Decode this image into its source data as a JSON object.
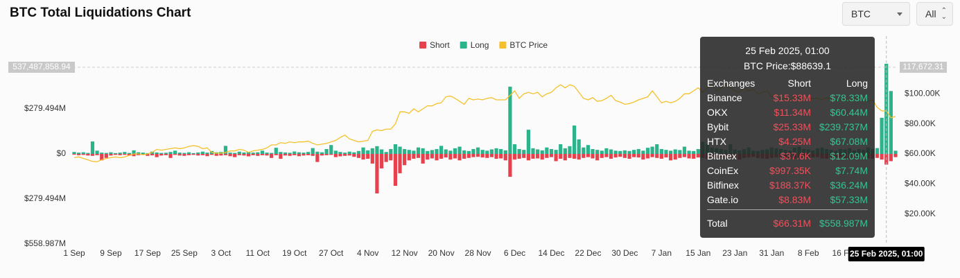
{
  "controls": {
    "symbol": "BTC",
    "range": "All"
  },
  "chart_data": {
    "type": "bar",
    "title": "BTC Total Liquidations Chart",
    "categories": [
      "1 Sep",
      null,
      null,
      null,
      null,
      null,
      null,
      null,
      "9 Sep",
      null,
      null,
      null,
      null,
      null,
      null,
      null,
      "17 Sep",
      null,
      null,
      null,
      null,
      null,
      null,
      null,
      "25 Sep",
      null,
      null,
      null,
      null,
      null,
      null,
      null,
      "3 Oct",
      null,
      null,
      null,
      null,
      null,
      null,
      null,
      "11 Oct",
      null,
      null,
      null,
      null,
      null,
      null,
      null,
      "19 Oct",
      null,
      null,
      null,
      null,
      null,
      null,
      null,
      "27 Oct",
      null,
      null,
      null,
      null,
      null,
      null,
      null,
      "4 Nov",
      null,
      null,
      null,
      null,
      null,
      null,
      null,
      "12 Nov",
      null,
      null,
      null,
      null,
      null,
      null,
      null,
      "20 Nov",
      null,
      null,
      null,
      null,
      null,
      null,
      null,
      "28 Nov",
      null,
      null,
      null,
      null,
      null,
      null,
      null,
      "6 Dec",
      null,
      null,
      null,
      null,
      null,
      null,
      null,
      "14 Dec",
      null,
      null,
      null,
      null,
      null,
      null,
      null,
      "22 Dec",
      null,
      null,
      null,
      null,
      null,
      null,
      null,
      "30 Dec",
      null,
      null,
      null,
      null,
      null,
      null,
      null,
      "7 Jan",
      null,
      null,
      null,
      null,
      null,
      null,
      null,
      "15 Jan",
      null,
      null,
      null,
      null,
      null,
      null,
      null,
      "23 Jan",
      null,
      null,
      null,
      null,
      null,
      null,
      null,
      "31 Jan",
      null,
      null,
      null,
      null,
      null,
      null,
      null,
      "8 Feb",
      null,
      null,
      null,
      null,
      null,
      null,
      null,
      "16 Feb",
      null,
      null,
      null,
      null,
      null,
      null,
      null,
      null,
      null,
      null,
      null
    ],
    "series": [
      {
        "name": "Short",
        "color": "#e8414e",
        "axis": "y",
        "values": [
          -5,
          -8,
          -6,
          -10,
          -12,
          -8,
          -40,
          -25,
          -10,
          -6,
          -8,
          -6,
          -10,
          -14,
          -8,
          -5,
          -12,
          -9,
          -20,
          -10,
          -8,
          -25,
          -6,
          -10,
          -12,
          -8,
          -6,
          -10,
          -8,
          -14,
          -6,
          -12,
          -10,
          -8,
          -14,
          -20,
          -8,
          -10,
          -15,
          -8,
          -12,
          -8,
          -10,
          -25,
          -8,
          -30,
          -10,
          -12,
          -8,
          -14,
          -10,
          -8,
          -12,
          -50,
          -10,
          -8,
          -6,
          -20,
          -15,
          -12,
          -10,
          -18,
          -25,
          -35,
          -30,
          -60,
          -245,
          -90,
          -50,
          -40,
          -198,
          -120,
          -70,
          -40,
          -30,
          -25,
          -60,
          -35,
          -28,
          -40,
          -30,
          -22,
          -35,
          -28,
          -40,
          -30,
          -25,
          -20,
          -18,
          -22,
          -25,
          -20,
          -30,
          -28,
          -40,
          -142,
          -35,
          -30,
          -25,
          -40,
          -30,
          -28,
          -35,
          -25,
          -20,
          -45,
          -30,
          -40,
          -25,
          -30,
          -35,
          -25,
          -20,
          -28,
          -40,
          -25,
          -20,
          -30,
          -22,
          -18,
          -25,
          -30,
          -20,
          -22,
          -35,
          -28,
          -20,
          -25,
          -30,
          -22,
          -40,
          -35,
          -25,
          -20,
          -28,
          -30,
          -22,
          -25,
          -30,
          -20,
          -25,
          -22,
          -30,
          -28,
          -20,
          -35,
          -25,
          -22,
          -18,
          -25,
          -28,
          -30,
          -25,
          -22,
          -20,
          -25,
          -30,
          -28,
          -22,
          -20,
          -25,
          -22,
          -20,
          -28,
          -30,
          -25,
          -22,
          -20,
          -25,
          -30,
          -22,
          -25,
          -20,
          -28,
          -30,
          -25,
          -35,
          -66.31,
          -45,
          -20
        ]
      },
      {
        "name": "Long",
        "color": "#2bb38b",
        "axis": "y",
        "values": [
          12,
          8,
          10,
          6,
          77,
          20,
          8,
          6,
          10,
          5,
          8,
          12,
          6,
          22,
          10,
          8,
          5,
          14,
          9,
          6,
          7,
          12,
          20,
          8,
          6,
          10,
          5,
          9,
          14,
          8,
          18,
          10,
          12,
          50,
          8,
          6,
          14,
          9,
          12,
          8,
          10,
          20,
          8,
          6,
          38,
          12,
          9,
          7,
          15,
          10,
          8,
          12,
          36,
          14,
          10,
          30,
          55,
          20,
          12,
          8,
          14,
          10,
          18,
          40,
          22,
          35,
          48,
          28,
          12,
          30,
          60,
          45,
          30,
          25,
          20,
          40,
          35,
          18,
          24,
          30,
          50,
          28,
          20,
          35,
          45,
          22,
          18,
          30,
          40,
          25,
          20,
          28,
          35,
          30,
          22,
          417,
          60,
          30,
          25,
          150,
          35,
          28,
          22,
          40,
          30,
          25,
          60,
          35,
          48,
          176,
          90,
          40,
          55,
          30,
          25,
          20,
          35,
          28,
          20,
          18,
          22,
          18,
          25,
          30,
          20,
          38,
          45,
          60,
          30,
          25,
          20,
          28,
          24,
          45,
          20,
          18,
          30,
          75,
          60,
          40,
          35,
          30,
          25,
          60,
          28,
          22,
          30,
          40,
          20,
          18,
          25,
          28,
          40,
          35,
          30,
          25,
          20,
          38,
          45,
          30,
          28,
          22,
          35,
          40,
          30,
          25,
          20,
          30,
          28,
          35,
          22,
          30,
          25,
          40,
          30,
          36,
          224,
          558.987,
          390,
          20
        ]
      },
      {
        "name": "BTC Price",
        "color": "#f5c12a",
        "axis": "y2",
        "values": [
          57.5,
          58,
          57,
          56,
          55,
          54.8,
          56,
          57,
          57.5,
          58,
          57.5,
          58,
          59,
          60,
          60,
          59.5,
          60,
          61,
          63,
          62.5,
          63,
          63.5,
          64,
          63.5,
          64,
          65,
          65.5,
          65,
          63.5,
          64,
          61,
          60.5,
          60.5,
          61,
          62,
          62,
          63,
          62.5,
          61,
          62,
          62.5,
          63,
          64,
          66,
          66,
          67.5,
          67,
          68,
          67.5,
          68,
          68,
          68.5,
          67,
          66,
          66.5,
          67,
          68,
          69,
          71,
          72.5,
          70,
          69,
          68,
          68.5,
          69,
          75,
          76,
          75.5,
          76.5,
          76.5,
          80,
          88,
          88,
          87,
          90,
          88,
          90,
          92,
          92,
          93.5,
          94,
          98,
          98.5,
          97,
          95,
          93,
          97,
          96,
          96.5,
          96,
          97,
          97.5,
          96,
          96,
          96,
          99,
          102,
          97,
          100,
          101,
          100,
          101,
          98,
          100,
          101,
          104,
          106,
          104,
          106,
          105,
          101,
          97,
          96,
          97.5,
          95,
          95.5,
          97,
          99,
          95.5,
          94.5,
          93,
          93.5,
          94.5,
          96,
          97,
          98,
          102,
          98,
          94,
          95,
          94,
          95,
          97,
          100,
          100,
          102,
          104,
          101,
          104,
          106,
          102,
          104,
          106,
          104,
          102,
          101,
          104,
          102,
          103,
          100,
          101,
          102,
          98,
          100,
          97,
          97,
          96,
          98,
          97,
          97,
          97,
          97,
          97,
          96,
          97.5,
          96,
          95.5,
          96,
          96.5,
          95,
          97,
          98,
          96,
          95,
          96,
          91,
          88.6,
          88.639,
          84,
          85
        ]
      }
    ],
    "ylim": [
      -558.987,
      558.987
    ],
    "yticks": [
      {
        "value": -558.987,
        "label": "$558.987M"
      },
      {
        "value": -279.494,
        "label": "$279.494M"
      },
      {
        "value": 0,
        "label": "$0"
      },
      {
        "value": 279.494,
        "label": "$279.494M"
      }
    ],
    "y2lim": [
      0,
      120
    ],
    "y2ticks": [
      {
        "value": 20,
        "label": "$20.00K"
      },
      {
        "value": 40,
        "label": "$40.00K"
      },
      {
        "value": 60,
        "label": "$60.00K"
      },
      {
        "value": 80,
        "label": "$80.00K"
      },
      {
        "value": 100,
        "label": "$100.00K"
      }
    ],
    "grid": false,
    "legend": "top",
    "crosshair": {
      "x_label": "25 Feb 2025, 01:00",
      "y": {
        "value": 537.48785894,
        "label": "537,487,858.94"
      },
      "y2": {
        "value": 117.67231,
        "label": "117,672.31"
      }
    },
    "tooltip": {
      "title": "25 Feb 2025, 01:00",
      "price": "BTC Price:$88639.1",
      "columns": [
        "Exchanges",
        "Short",
        "Long"
      ],
      "rows": [
        [
          "Binance",
          "$15.33M",
          "$78.33M"
        ],
        [
          "OKX",
          "$11.34M",
          "$60.44M"
        ],
        [
          "Bybit",
          "$25.33M",
          "$239.737M"
        ],
        [
          "HTX",
          "$4.25M",
          "$67.08M"
        ],
        [
          "Bitmex",
          "$37.6K",
          "$12.09M"
        ],
        [
          "CoinEx",
          "$997.35K",
          "$7.74M"
        ],
        [
          "Bitfinex",
          "$188.37K",
          "$36.24M"
        ],
        [
          "Gate.io",
          "$8.83M",
          "$57.33M"
        ]
      ],
      "total": [
        "Total",
        "$66.31M",
        "$558.987M"
      ]
    }
  }
}
